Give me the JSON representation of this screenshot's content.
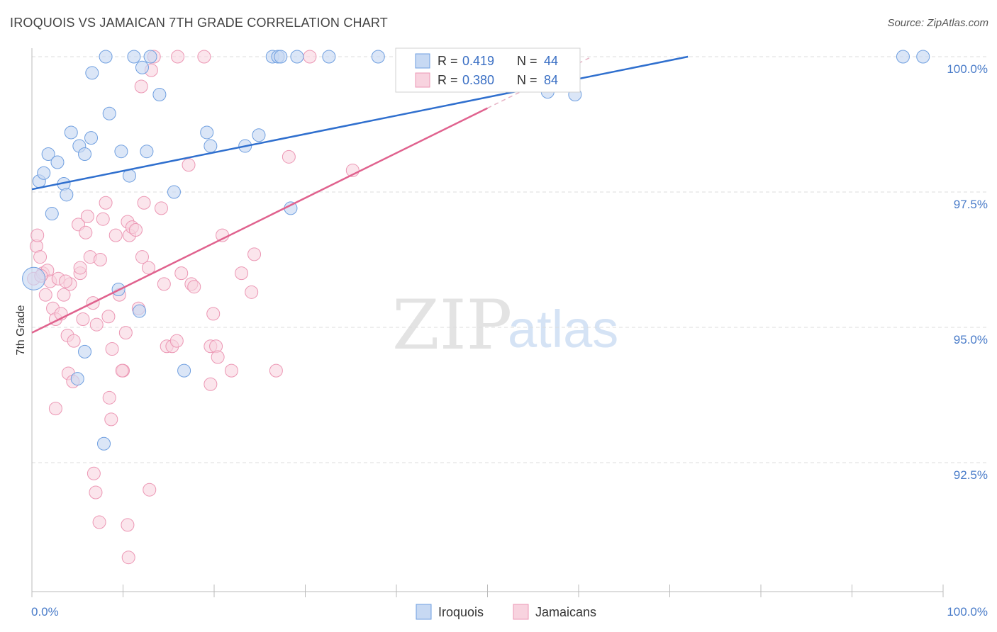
{
  "header": {
    "title": "IROQUOIS VS JAMAICAN 7TH GRADE CORRELATION CHART",
    "source": "Source: ZipAtlas.com"
  },
  "watermark": {
    "part1": "ZIP",
    "part2": "atlas"
  },
  "colors": {
    "blue": "#6f9fe0",
    "blue_fill": "#c7d9f3",
    "blue_line": "#2f6fce",
    "pink": "#ec97b4",
    "pink_fill": "#f8d3df",
    "pink_line": "#e0628e",
    "tick_text": "#4a7cc9",
    "grid": "#dcdcdc"
  },
  "legend": {
    "rows": [
      {
        "r_label": "R =",
        "r_value": "0.419",
        "n_label": "N =",
        "n_value": "44"
      },
      {
        "r_label": "R =",
        "r_value": "0.380",
        "n_label": "N =",
        "n_value": "84"
      }
    ]
  },
  "bottom_legend": {
    "items": [
      "Iroquois",
      "Jamaicans"
    ]
  },
  "chart_data": {
    "type": "scatter",
    "title": "IROQUOIS VS JAMAICAN 7TH GRADE CORRELATION CHART",
    "ylabel": "7th Grade",
    "xlabel": "",
    "xlim": [
      0,
      100
    ],
    "ylim": [
      90.0,
      100.5
    ],
    "x_tick_labels": [
      "0.0%",
      "100.0%"
    ],
    "y_ticks": [
      92.5,
      95.0,
      97.5,
      100.0
    ],
    "y_tick_labels": [
      "92.5%",
      "95.0%",
      "97.5%",
      "100.0%"
    ],
    "grid": true,
    "legend_position": "top-center",
    "series": [
      {
        "name": "Iroquois",
        "R": 0.419,
        "N": 44,
        "trend": {
          "x": [
            0,
            72
          ],
          "y": [
            97.55,
            100.0
          ]
        },
        "points": [
          [
            0.2,
            95.9
          ],
          [
            0.8,
            97.7
          ],
          [
            1.3,
            97.85
          ],
          [
            1.8,
            98.2
          ],
          [
            2.2,
            97.1
          ],
          [
            2.8,
            98.05
          ],
          [
            3.5,
            97.65
          ],
          [
            3.8,
            97.45
          ],
          [
            4.3,
            98.6
          ],
          [
            5.2,
            98.35
          ],
          [
            5.8,
            98.2
          ],
          [
            6.5,
            98.5
          ],
          [
            8.1,
            100.0
          ],
          [
            6.6,
            99.7
          ],
          [
            8.5,
            98.95
          ],
          [
            9.8,
            98.25
          ],
          [
            11.2,
            100.0
          ],
          [
            12.1,
            99.8
          ],
          [
            12.6,
            98.25
          ],
          [
            13.0,
            100.0
          ],
          [
            14.0,
            99.3
          ],
          [
            15.6,
            97.5
          ],
          [
            10.7,
            97.8
          ],
          [
            19.2,
            98.6
          ],
          [
            19.6,
            98.35
          ],
          [
            23.4,
            98.35
          ],
          [
            24.9,
            98.55
          ],
          [
            26.4,
            100.0
          ],
          [
            27.0,
            100.0
          ],
          [
            27.3,
            100.0
          ],
          [
            29.1,
            100.0
          ],
          [
            32.6,
            100.0
          ],
          [
            38.0,
            100.0
          ],
          [
            56.6,
            99.35
          ],
          [
            59.6,
            99.3
          ],
          [
            95.6,
            100.0
          ],
          [
            97.8,
            100.0
          ],
          [
            28.4,
            97.2
          ],
          [
            9.5,
            95.7
          ],
          [
            11.8,
            95.3
          ],
          [
            5.8,
            94.55
          ],
          [
            16.7,
            94.2
          ],
          [
            5.0,
            94.05
          ],
          [
            7.9,
            92.85
          ]
        ]
      },
      {
        "name": "Jamaicans",
        "R": 0.38,
        "N": 84,
        "trend": {
          "x": [
            0,
            50
          ],
          "y": [
            94.9,
            99.05
          ]
        },
        "points": [
          [
            0.2,
            95.9
          ],
          [
            0.5,
            96.5
          ],
          [
            0.9,
            96.3
          ],
          [
            1.2,
            96.0
          ],
          [
            1.5,
            95.6
          ],
          [
            1.7,
            96.05
          ],
          [
            2.0,
            95.85
          ],
          [
            2.3,
            95.35
          ],
          [
            2.6,
            95.15
          ],
          [
            2.9,
            95.9
          ],
          [
            3.2,
            95.25
          ],
          [
            3.5,
            95.6
          ],
          [
            3.9,
            94.85
          ],
          [
            4.2,
            95.8
          ],
          [
            4.6,
            94.75
          ],
          [
            5.1,
            96.9
          ],
          [
            5.3,
            96.0
          ],
          [
            5.6,
            95.15
          ],
          [
            5.9,
            96.75
          ],
          [
            6.1,
            97.05
          ],
          [
            6.4,
            96.3
          ],
          [
            6.7,
            95.45
          ],
          [
            7.1,
            95.05
          ],
          [
            7.5,
            96.25
          ],
          [
            7.8,
            97.0
          ],
          [
            8.1,
            97.3
          ],
          [
            8.4,
            95.2
          ],
          [
            8.8,
            94.6
          ],
          [
            9.2,
            96.7
          ],
          [
            9.6,
            95.6
          ],
          [
            10.0,
            94.2
          ],
          [
            10.3,
            94.9
          ],
          [
            10.7,
            96.7
          ],
          [
            10.5,
            96.95
          ],
          [
            11.0,
            96.85
          ],
          [
            11.4,
            96.8
          ],
          [
            11.7,
            95.35
          ],
          [
            12.0,
            99.45
          ],
          [
            12.3,
            97.3
          ],
          [
            12.8,
            96.1
          ],
          [
            13.1,
            99.75
          ],
          [
            13.4,
            100.0
          ],
          [
            14.2,
            97.2
          ],
          [
            14.5,
            95.8
          ],
          [
            14.8,
            94.65
          ],
          [
            15.4,
            94.65
          ],
          [
            15.9,
            94.75
          ],
          [
            16.4,
            96.0
          ],
          [
            17.2,
            98.0
          ],
          [
            17.5,
            95.8
          ],
          [
            17.8,
            95.75
          ],
          [
            19.6,
            94.65
          ],
          [
            19.6,
            93.95
          ],
          [
            19.9,
            95.25
          ],
          [
            20.2,
            94.65
          ],
          [
            20.4,
            94.45
          ],
          [
            20.9,
            96.7
          ],
          [
            21.9,
            94.2
          ],
          [
            23.0,
            96.0
          ],
          [
            24.1,
            95.65
          ],
          [
            24.4,
            96.35
          ],
          [
            26.8,
            94.2
          ],
          [
            28.2,
            98.15
          ],
          [
            35.2,
            97.9
          ],
          [
            30.5,
            100.0
          ],
          [
            16.0,
            100.0
          ],
          [
            18.9,
            100.0
          ],
          [
            0.6,
            96.7
          ],
          [
            2.6,
            93.5
          ],
          [
            4.0,
            94.15
          ],
          [
            4.5,
            94.0
          ],
          [
            8.5,
            93.7
          ],
          [
            8.7,
            93.3
          ],
          [
            6.8,
            92.3
          ],
          [
            7.0,
            91.95
          ],
          [
            7.4,
            91.4
          ],
          [
            10.5,
            91.35
          ],
          [
            10.6,
            90.75
          ],
          [
            12.9,
            92.0
          ],
          [
            1.0,
            95.95
          ],
          [
            9.9,
            94.2
          ],
          [
            12.1,
            96.3
          ],
          [
            3.7,
            95.85
          ],
          [
            5.3,
            96.1
          ]
        ]
      }
    ]
  }
}
